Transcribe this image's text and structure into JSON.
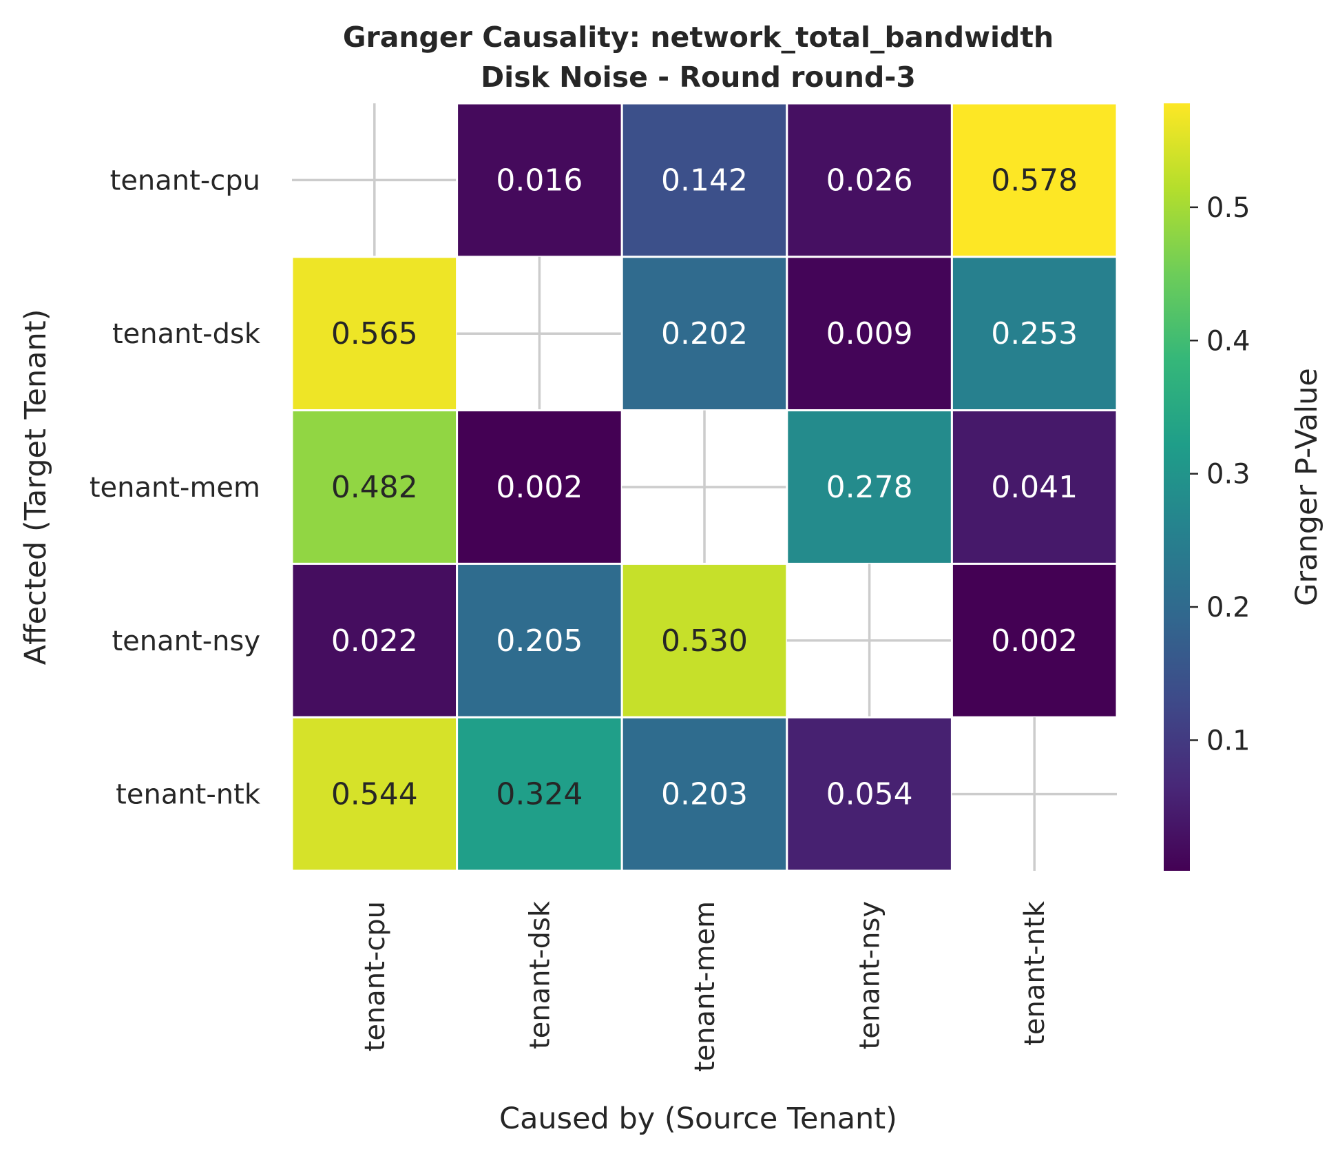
{
  "chart_data": {
    "type": "heatmap",
    "title": "Granger Causality: network_total_bandwidth",
    "subtitle": "Disk Noise - Round round-3",
    "xlabel": "Caused by (Source Tenant)",
    "ylabel": "Affected (Target Tenant)",
    "x_categories": [
      "tenant-cpu",
      "tenant-dsk",
      "tenant-mem",
      "tenant-nsy",
      "tenant-ntk"
    ],
    "y_categories": [
      "tenant-cpu",
      "tenant-dsk",
      "tenant-mem",
      "tenant-nsy",
      "tenant-ntk"
    ],
    "values": [
      [
        null,
        0.016,
        0.142,
        0.026,
        0.578
      ],
      [
        0.565,
        null,
        0.202,
        0.009,
        0.253
      ],
      [
        0.482,
        0.002,
        null,
        0.278,
        0.041
      ],
      [
        0.022,
        0.205,
        0.53,
        null,
        0.002
      ],
      [
        0.544,
        0.324,
        0.203,
        0.054,
        null
      ]
    ],
    "value_format": "3 decimals",
    "colorbar": {
      "label": "Granger P-Value",
      "colormap": "viridis",
      "range": [
        0.002,
        0.578
      ],
      "ticks": [
        "0.1",
        "0.2",
        "0.3",
        "0.4",
        "0.5"
      ]
    },
    "missing_marker": "cross",
    "colors": {
      "missing_cross": "#cccccc",
      "cell_border": "#ffffff",
      "dark_text": "#262626",
      "light_text": "#ffffff"
    }
  }
}
